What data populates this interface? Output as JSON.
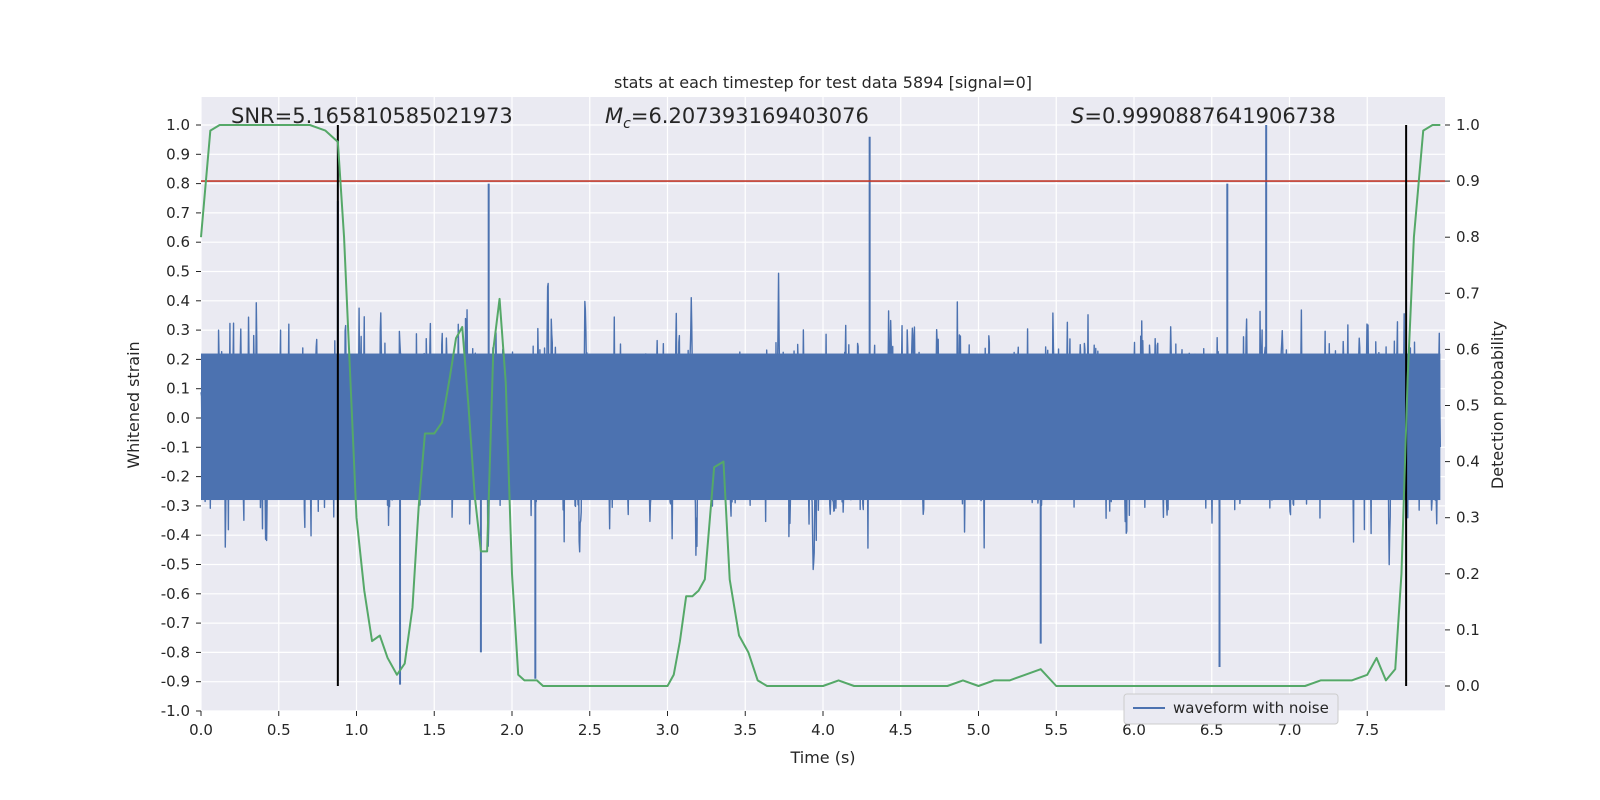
{
  "chart_data": {
    "type": "line",
    "title": "stats at each timestep for test data 5894 [signal=0]",
    "xlabel": "Time (s)",
    "ylabel": "Whitened strain",
    "y2label": "Detection probability",
    "xlim": [
      0.0,
      8.0
    ],
    "ylim": [
      -1.0,
      1.0
    ],
    "y2lim": [
      -0.04,
      1.0
    ],
    "grid": true,
    "legend_placement": "lower right",
    "xticks": [
      "0.0",
      "0.5",
      "1.0",
      "1.5",
      "2.0",
      "2.5",
      "3.0",
      "3.5",
      "4.0",
      "4.5",
      "5.0",
      "5.5",
      "6.0",
      "6.5",
      "7.0",
      "7.5"
    ],
    "yticks": [
      "1.0",
      "0.9",
      "0.8",
      "0.7",
      "0.6",
      "0.5",
      "0.4",
      "0.3",
      "0.2",
      "0.1",
      "0.0",
      "-0.1",
      "-0.2",
      "-0.3",
      "-0.4",
      "-0.5",
      "-0.6",
      "-0.7",
      "-0.8",
      "-0.9",
      "-1.0"
    ],
    "y2ticks": [
      "1.0",
      "0.9",
      "0.8",
      "0.7",
      "0.6",
      "0.5",
      "0.4",
      "0.3",
      "0.2",
      "0.1",
      "0.0"
    ],
    "annotations": [
      {
        "label": "SNR",
        "value": "5.165810585021973"
      },
      {
        "label": "M_c",
        "value": "6.207393169403076"
      },
      {
        "label": "S",
        "value": "0.9990887641906738"
      }
    ],
    "threshold": {
      "axis": "y2",
      "value": 0.9,
      "color": "#c0392b"
    },
    "vertical_markers": [
      0.88,
      7.75
    ],
    "series": [
      {
        "name": "waveform with noise",
        "axis": "y",
        "color": "#4c72b0",
        "style": "dense noise",
        "peaks": [
          {
            "x": 0.88,
            "y": 0.74
          },
          {
            "x": 1.85,
            "y": 0.8
          },
          {
            "x": 4.3,
            "y": 0.96
          },
          {
            "x": 6.85,
            "y": 1.0
          },
          {
            "x": 6.6,
            "y": 0.8
          }
        ],
        "troughs": [
          {
            "x": 1.28,
            "y": -0.91
          },
          {
            "x": 1.8,
            "y": -0.8
          },
          {
            "x": 2.15,
            "y": -0.89
          },
          {
            "x": 5.4,
            "y": -0.77
          },
          {
            "x": 6.55,
            "y": -0.85
          }
        ]
      },
      {
        "name": "",
        "axis": "y2",
        "color": "#55a868",
        "x": [
          0.0,
          0.06,
          0.12,
          0.2,
          0.3,
          0.4,
          0.5,
          0.6,
          0.7,
          0.8,
          0.88,
          0.92,
          0.96,
          1.0,
          1.05,
          1.1,
          1.15,
          1.2,
          1.26,
          1.31,
          1.36,
          1.4,
          1.44,
          1.5,
          1.55,
          1.6,
          1.64,
          1.68,
          1.72,
          1.76,
          1.8,
          1.84,
          1.88,
          1.92,
          1.96,
          2.0,
          2.04,
          2.08,
          2.12,
          2.16,
          2.2,
          2.3,
          2.4,
          2.5,
          2.6,
          2.7,
          2.8,
          2.9,
          3.0,
          3.04,
          3.08,
          3.12,
          3.16,
          3.2,
          3.24,
          3.3,
          3.36,
          3.4,
          3.46,
          3.52,
          3.58,
          3.64,
          3.7,
          3.8,
          3.9,
          4.0,
          4.1,
          4.2,
          4.25,
          4.3,
          4.4,
          4.5,
          4.6,
          4.7,
          4.8,
          4.9,
          5.0,
          5.1,
          5.2,
          5.3,
          5.4,
          5.5,
          5.6,
          5.7,
          5.8,
          5.9,
          6.0,
          6.2,
          6.4,
          6.6,
          6.8,
          6.86,
          6.9,
          6.95,
          7.0,
          7.1,
          7.2,
          7.3,
          7.4,
          7.5,
          7.56,
          7.62,
          7.68,
          7.72,
          7.76,
          7.8,
          7.86,
          7.92,
          7.97
        ],
        "y": [
          0.8,
          0.99,
          1.0,
          1.0,
          1.0,
          1.0,
          1.0,
          1.0,
          1.0,
          0.99,
          0.97,
          0.8,
          0.55,
          0.3,
          0.17,
          0.08,
          0.09,
          0.05,
          0.02,
          0.04,
          0.14,
          0.32,
          0.45,
          0.45,
          0.47,
          0.55,
          0.62,
          0.64,
          0.5,
          0.34,
          0.24,
          0.24,
          0.6,
          0.69,
          0.54,
          0.2,
          0.02,
          0.01,
          0.01,
          0.01,
          0.0,
          0.0,
          0.0,
          0.0,
          0.0,
          0.0,
          0.0,
          0.0,
          0.0,
          0.02,
          0.08,
          0.16,
          0.16,
          0.17,
          0.19,
          0.39,
          0.4,
          0.19,
          0.09,
          0.06,
          0.01,
          0.0,
          0.0,
          0.0,
          0.0,
          0.0,
          0.01,
          0.0,
          0.0,
          0.0,
          0.0,
          0.0,
          0.0,
          0.0,
          0.0,
          0.01,
          0.0,
          0.01,
          0.01,
          0.02,
          0.03,
          0.0,
          0.0,
          0.0,
          0.0,
          0.0,
          0.0,
          0.0,
          0.0,
          0.0,
          0.0,
          0.0,
          0.0,
          0.0,
          0.0,
          0.0,
          0.01,
          0.01,
          0.01,
          0.02,
          0.05,
          0.01,
          0.03,
          0.2,
          0.55,
          0.8,
          0.99,
          1.0,
          1.0
        ]
      }
    ]
  }
}
